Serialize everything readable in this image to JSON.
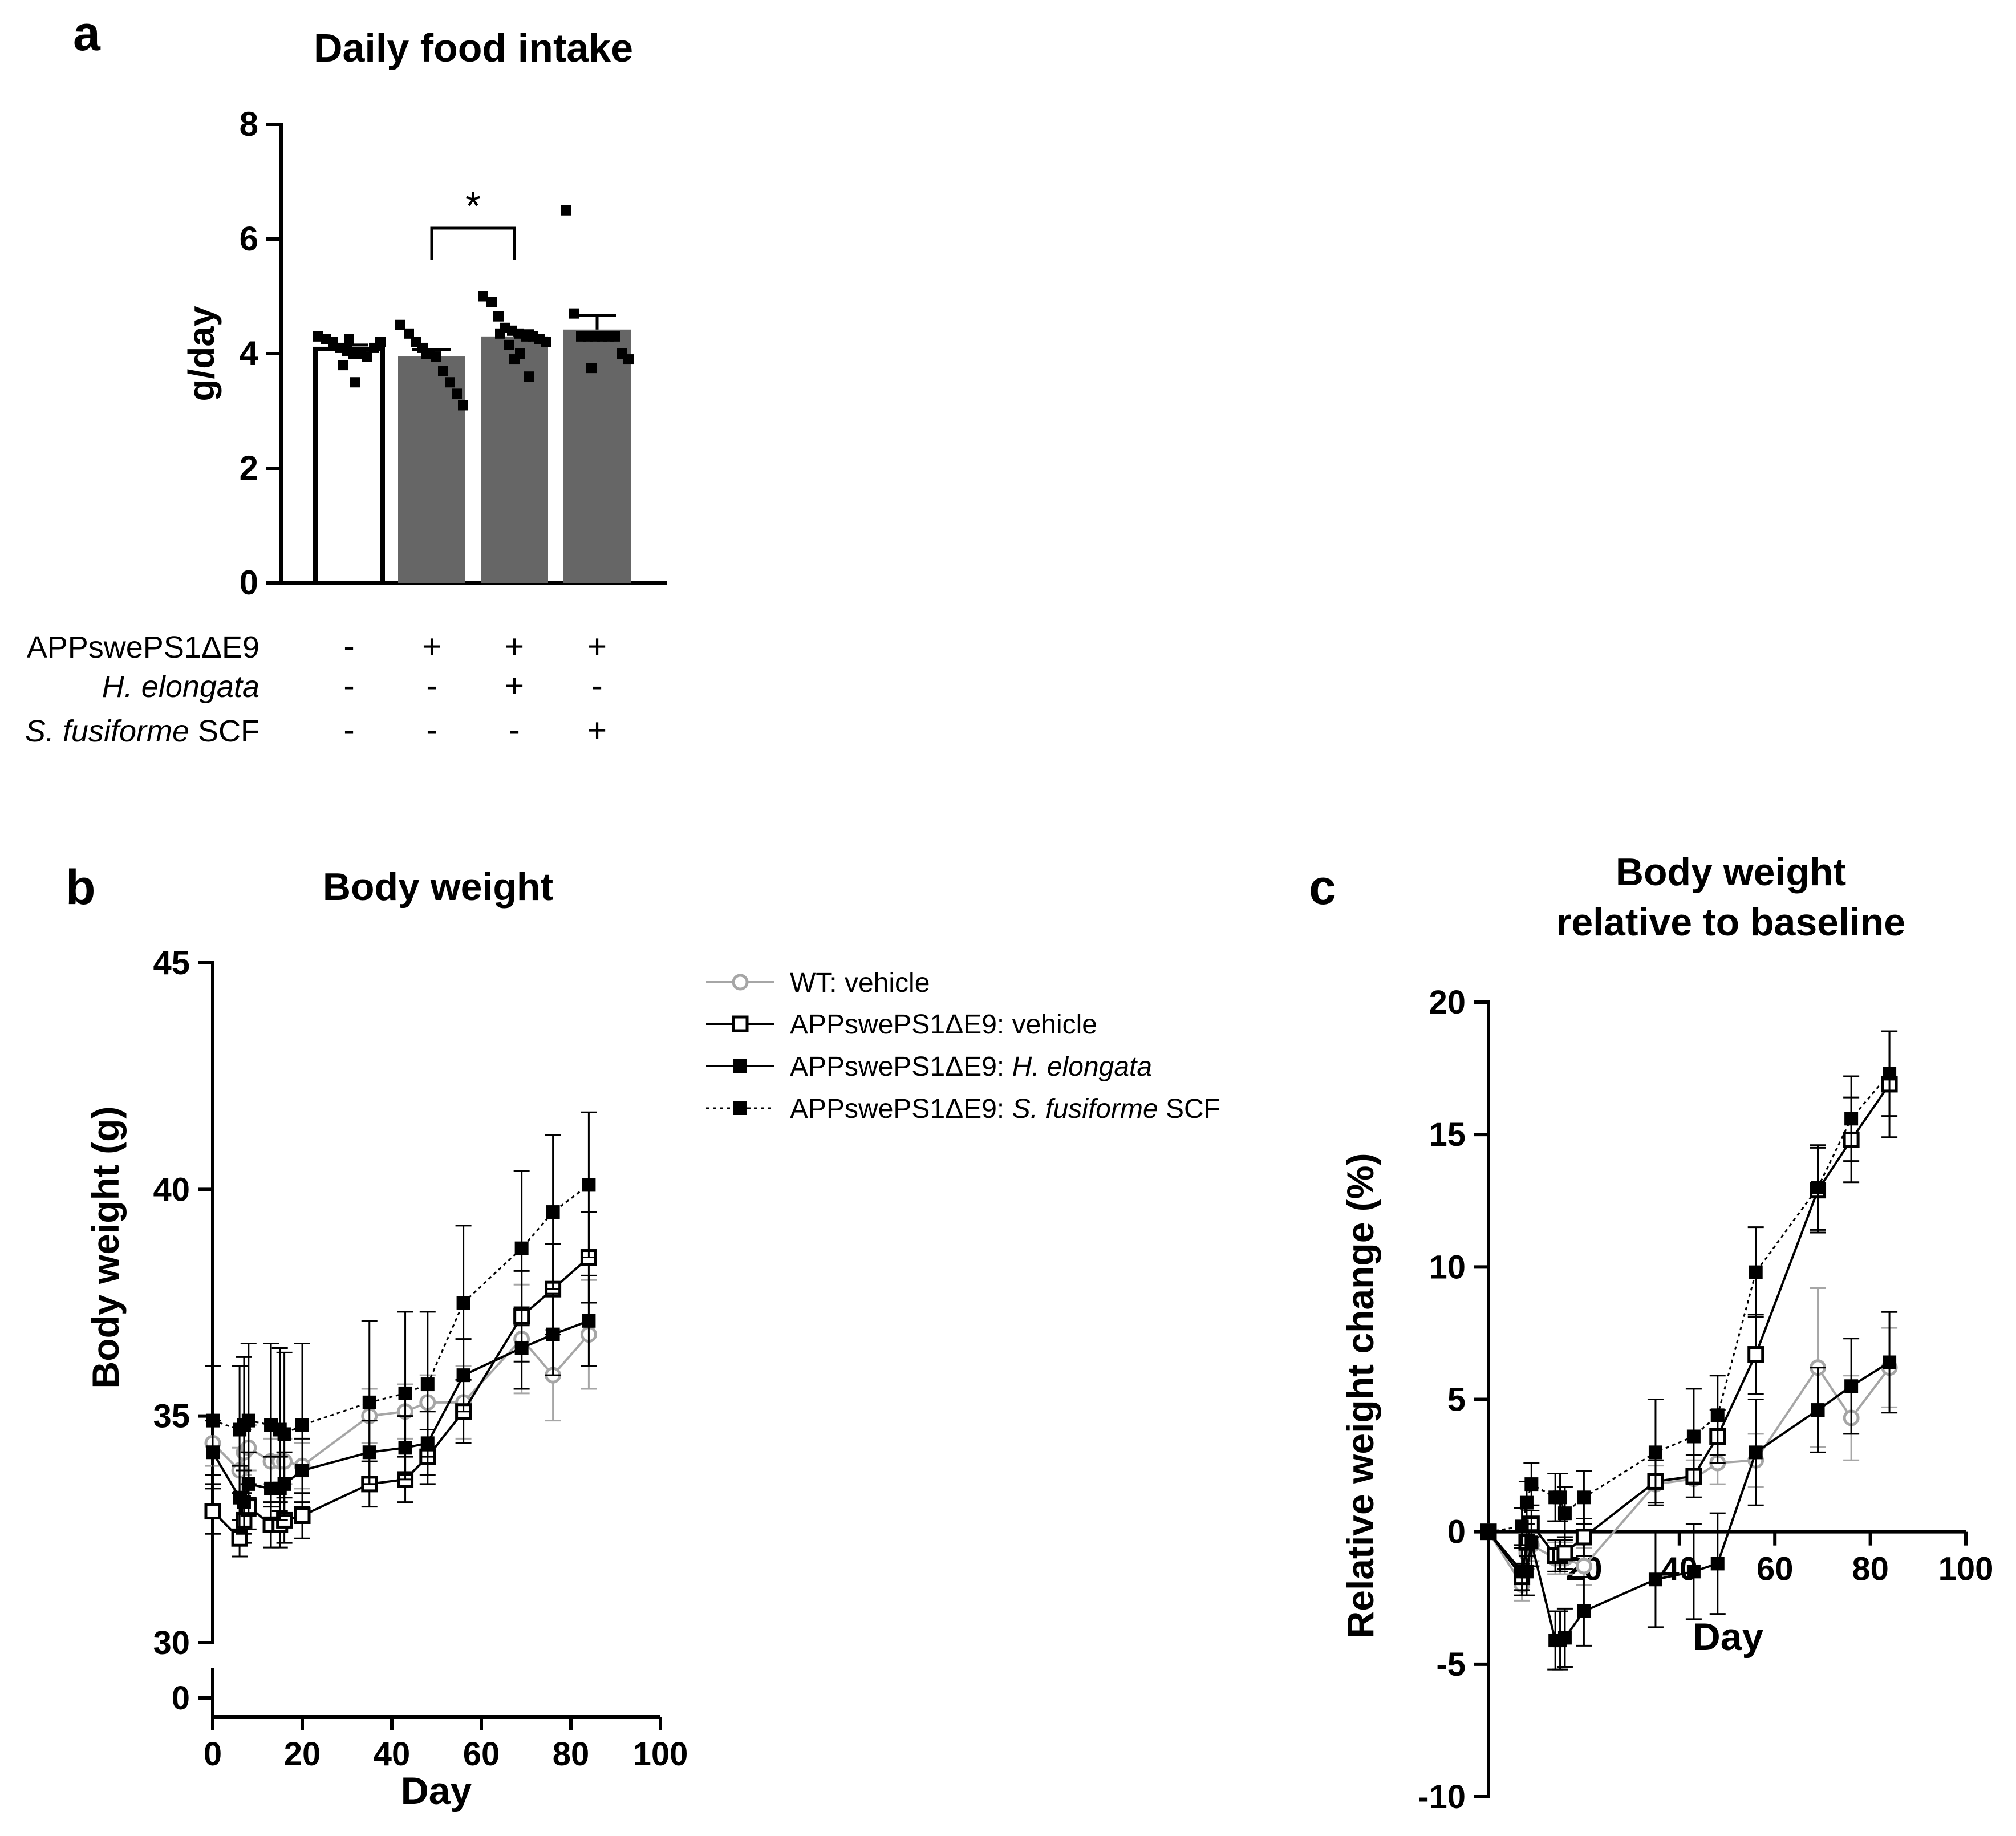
{
  "colors": {
    "black": "#000000",
    "gray_bar": "#666666",
    "wt_gray": "#a6a6a6",
    "white": "#ffffff"
  },
  "chart_data": [
    {
      "panel": "a",
      "type": "bar",
      "title": "Daily food intake",
      "ylabel": "g/day",
      "xlabel": "",
      "ylim": [
        0,
        8
      ],
      "yticks": [
        0,
        2,
        4,
        6,
        8
      ],
      "categories": [
        "WT: vehicle",
        "APPswePS1ΔE9: vehicle",
        "APPswePS1ΔE9: H. elongata",
        "APPswePS1ΔE9: S. fusiforme SCF"
      ],
      "values": [
        4.08,
        3.95,
        4.3,
        4.42
      ],
      "sem": [
        0.07,
        0.12,
        0.1,
        0.25
      ],
      "bar_fill": [
        "#ffffff",
        "#666666",
        "#666666",
        "#666666"
      ],
      "points": [
        [
          4.3,
          4.25,
          4.2,
          4.1,
          4.05,
          4.0,
          4.0,
          3.95,
          4.1,
          4.2,
          3.8,
          3.5,
          4.25
        ],
        [
          4.5,
          4.35,
          4.2,
          4.1,
          4.0,
          3.95,
          3.7,
          3.5,
          3.3,
          3.1,
          4.0
        ],
        [
          5.0,
          4.9,
          4.65,
          4.45,
          4.4,
          4.35,
          4.3,
          4.3,
          4.25,
          4.2,
          4.15,
          4.0,
          3.9,
          3.6,
          4.35
        ],
        [
          6.5,
          4.7,
          4.3,
          4.3,
          4.3,
          4.3,
          4.3,
          4.3,
          4.0,
          3.9,
          3.75
        ]
      ],
      "significance": {
        "from": 1,
        "to": 2,
        "label": "*"
      },
      "conditions": [
        {
          "name": "APPswePS1ΔE9",
          "name_italic": "",
          "name_suffix": "",
          "marks": [
            "-",
            "+",
            "+",
            "+"
          ]
        },
        {
          "name": "",
          "name_italic": "H. elongata",
          "name_suffix": "",
          "marks": [
            "-",
            "-",
            "+",
            "-"
          ]
        },
        {
          "name": "",
          "name_italic": "S. fusiforme",
          "name_suffix": " SCF",
          "marks": [
            "-",
            "-",
            "-",
            "+"
          ]
        }
      ]
    },
    {
      "panel": "b",
      "type": "line",
      "title": "Body weight",
      "xlabel": "Day",
      "ylabel": "Body weight (g)",
      "xlim": [
        0,
        100
      ],
      "xticks": [
        0,
        20,
        40,
        60,
        80,
        100
      ],
      "ylim": [
        30,
        45
      ],
      "yticks": [
        30,
        35,
        40,
        45
      ],
      "y_axis_break": {
        "lower_tick": 0
      },
      "legend_position": "right",
      "series": [
        {
          "name": "WT: vehicle",
          "label_plain": "WT: vehicle",
          "label_italic": "",
          "label_suffix": "",
          "marker": "open-circle",
          "line": "solid",
          "color": "#a6a6a6",
          "x": [
            0,
            6,
            7,
            8,
            13,
            15,
            16,
            20,
            35,
            43,
            48,
            56,
            69,
            76,
            84
          ],
          "y": [
            34.4,
            33.8,
            34.2,
            34.3,
            34.0,
            34.0,
            34.0,
            33.9,
            35.0,
            35.1,
            35.3,
            35.3,
            36.7,
            35.9,
            36.8
          ],
          "err": [
            0.5,
            0.5,
            0.5,
            0.5,
            0.5,
            0.5,
            0.5,
            0.5,
            0.6,
            0.6,
            0.6,
            0.8,
            1.2,
            1.0,
            1.2
          ]
        },
        {
          "name": "APPswePS1ΔE9: vehicle",
          "label_plain": "APPswePS1ΔE9: vehicle",
          "label_italic": "",
          "label_suffix": "",
          "marker": "open-square",
          "line": "solid",
          "color": "#000000",
          "x": [
            0,
            6,
            7,
            8,
            13,
            15,
            16,
            20,
            35,
            43,
            48,
            56,
            69,
            76,
            84
          ],
          "y": [
            32.9,
            32.3,
            32.7,
            33.0,
            32.6,
            32.6,
            32.7,
            32.8,
            33.5,
            33.6,
            34.1,
            35.1,
            37.2,
            37.8,
            38.5
          ],
          "err": [
            0.5,
            0.4,
            0.5,
            0.5,
            0.5,
            0.5,
            0.5,
            0.5,
            0.5,
            0.5,
            0.6,
            0.7,
            1.0,
            1.0,
            1.0
          ]
        },
        {
          "name": "APPswePS1ΔE9: H. elongata",
          "label_plain": "APPswePS1ΔE9: ",
          "label_italic": "H. elongata",
          "label_suffix": "",
          "marker": "filled-square",
          "line": "solid",
          "color": "#000000",
          "x": [
            0,
            6,
            7,
            8,
            13,
            15,
            16,
            20,
            35,
            43,
            48,
            56,
            69,
            76,
            84
          ],
          "y": [
            34.2,
            33.2,
            33.1,
            33.5,
            33.4,
            33.4,
            33.5,
            33.8,
            34.2,
            34.3,
            34.4,
            35.9,
            36.5,
            36.8,
            37.1
          ],
          "err": [
            0.7,
            0.7,
            0.7,
            0.7,
            0.7,
            0.7,
            0.7,
            0.7,
            0.7,
            0.7,
            0.7,
            0.8,
            0.9,
            0.9,
            1.0
          ]
        },
        {
          "name": "APPswePS1ΔE9: S. fusiforme SCF",
          "label_plain": "APPswePS1ΔE9: ",
          "label_italic": "S. fusiforme",
          "label_suffix": " SCF",
          "marker": "filled-square",
          "line": "dotted",
          "color": "#000000",
          "x": [
            0,
            6,
            7,
            8,
            13,
            15,
            16,
            20,
            35,
            43,
            48,
            56,
            69,
            76,
            84
          ],
          "y": [
            34.9,
            34.7,
            34.8,
            34.9,
            34.8,
            34.7,
            34.6,
            34.8,
            35.3,
            35.5,
            35.7,
            37.5,
            38.7,
            39.5,
            40.1
          ],
          "err": [
            1.2,
            1.4,
            1.5,
            1.7,
            1.8,
            1.8,
            1.8,
            1.8,
            1.8,
            1.8,
            1.6,
            1.7,
            1.7,
            1.7,
            1.6
          ]
        }
      ]
    },
    {
      "panel": "c",
      "type": "line",
      "title": "Body weight relative to baseline",
      "title_lines": [
        "Body weight",
        "relative to baseline"
      ],
      "xlabel": "Day",
      "ylabel": "Relative weight change (%)",
      "xlim": [
        0,
        100
      ],
      "xticks": [
        20,
        40,
        60,
        80,
        100
      ],
      "ylim": [
        -10,
        20
      ],
      "yticks": [
        -10,
        -5,
        0,
        5,
        10,
        15,
        20
      ],
      "series": [
        {
          "name": "WT: vehicle",
          "marker": "open-circle",
          "line": "solid",
          "color": "#a6a6a6",
          "x": [
            0,
            7,
            8,
            9,
            14,
            15,
            16,
            20,
            35,
            43,
            48,
            56,
            69,
            76,
            84
          ],
          "y": [
            0,
            -2.0,
            -0.8,
            -0.5,
            -1.0,
            -1.0,
            -1.0,
            -1.3,
            1.8,
            2.0,
            2.6,
            2.7,
            6.2,
            4.3,
            6.2
          ],
          "err": [
            0,
            0.6,
            0.6,
            0.6,
            0.6,
            0.6,
            0.6,
            0.7,
            0.7,
            0.7,
            0.8,
            1.0,
            3.0,
            1.6,
            1.5
          ]
        },
        {
          "name": "APPswePS1ΔE9: vehicle",
          "marker": "open-square",
          "line": "solid",
          "color": "#000000",
          "x": [
            0,
            7,
            8,
            9,
            14,
            15,
            16,
            20,
            35,
            43,
            48,
            56,
            69,
            76,
            84
          ],
          "y": [
            0,
            -1.7,
            -0.4,
            0.3,
            -0.9,
            -0.9,
            -0.8,
            -0.2,
            1.9,
            2.1,
            3.6,
            6.7,
            12.9,
            14.8,
            16.9
          ],
          "err": [
            0,
            0.5,
            0.5,
            0.5,
            0.6,
            0.6,
            0.6,
            0.7,
            0.8,
            0.8,
            1.0,
            1.5,
            1.6,
            1.6,
            2.0
          ]
        },
        {
          "name": "APPswePS1ΔE9: H. elongata",
          "marker": "filled-square",
          "line": "solid",
          "color": "#000000",
          "x": [
            0,
            7,
            8,
            9,
            14,
            15,
            16,
            20,
            35,
            43,
            48,
            56,
            69,
            76,
            84
          ],
          "y": [
            0,
            -1.5,
            -1.5,
            -0.4,
            -4.1,
            -4.1,
            -4.0,
            -3.0,
            -1.8,
            -1.5,
            -1.2,
            3.0,
            4.6,
            5.5,
            6.4
          ],
          "err": [
            0,
            0.9,
            0.9,
            0.9,
            1.1,
            1.1,
            1.1,
            1.3,
            1.8,
            1.8,
            1.9,
            2.0,
            1.6,
            1.8,
            1.9
          ]
        },
        {
          "name": "APPswePS1ΔE9: S. fusiforme SCF",
          "marker": "filled-square",
          "line": "dotted",
          "color": "#000000",
          "x": [
            0,
            7,
            8,
            9,
            14,
            15,
            16,
            20,
            35,
            43,
            48,
            56,
            69,
            76,
            84
          ],
          "y": [
            0,
            0.2,
            1.1,
            1.8,
            1.3,
            1.3,
            0.7,
            1.3,
            3.0,
            3.6,
            4.4,
            9.8,
            13.0,
            15.6,
            17.3
          ],
          "err": [
            0,
            0.7,
            0.8,
            0.8,
            0.9,
            0.9,
            1.0,
            1.0,
            2.0,
            1.8,
            1.5,
            1.7,
            1.6,
            1.6,
            1.6
          ]
        }
      ]
    }
  ],
  "panel_labels": {
    "a": "a",
    "b": "b",
    "c": "c"
  }
}
